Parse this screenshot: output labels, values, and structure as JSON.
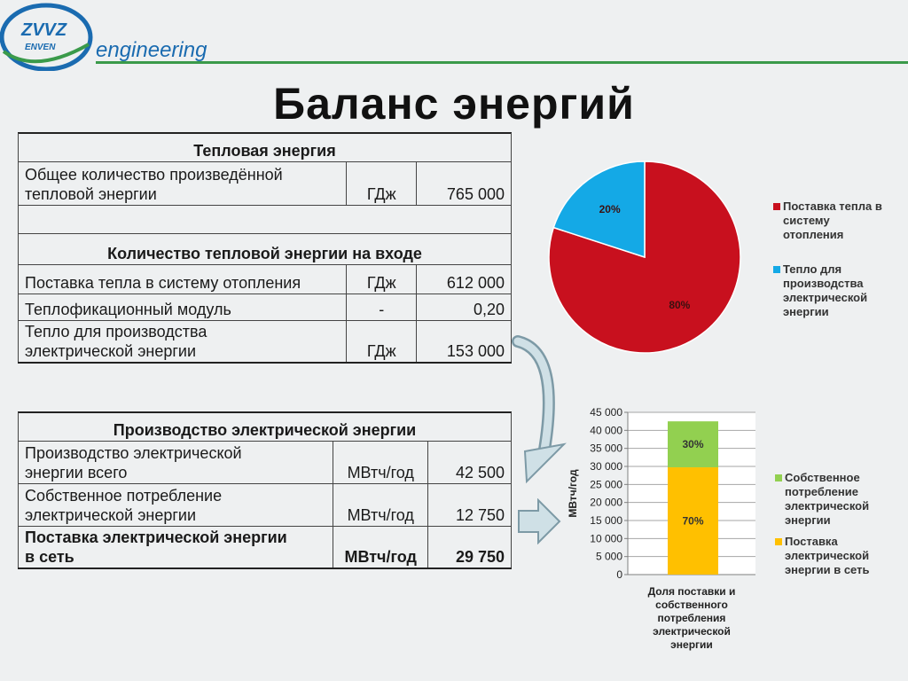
{
  "brand": {
    "logo_top": "ZVVZ",
    "logo_bottom": "ENVEN",
    "word": "engineering"
  },
  "title": "Баланс энергий",
  "table_heat": {
    "section1": "Тепловая энергия",
    "row1": {
      "label_1": "Общее количество произведённой",
      "label_2": "тепловой энергии",
      "unit": "ГДж",
      "value": "765 000"
    },
    "section2": "Количество тепловой энергии на входе",
    "row2": {
      "label": "Поставка тепла в систему отопления",
      "unit": "ГДж",
      "value": "612 000"
    },
    "row3": {
      "label": "Теплофикационный модуль",
      "unit": "-",
      "value": "0,20"
    },
    "row4": {
      "label_1": "Тепло для производства",
      "label_2": "электрической энергии",
      "unit": "ГДж",
      "value": "153 000"
    }
  },
  "table_elec": {
    "section": "Производство электрической энергии",
    "row1": {
      "label_1": "Производство электрической",
      "label_2": "энергии всего",
      "unit": "МВтч/год",
      "value": "42 500"
    },
    "row2": {
      "label_1": "Собственное потребление",
      "label_2": "электрической энергии",
      "unit": "МВтч/год",
      "value": "12 750"
    },
    "row3": {
      "label_1": "Поставка электрической энергии",
      "label_2": "в сеть",
      "unit": "МВтч/год",
      "value": "29 750"
    }
  },
  "chart_data": [
    {
      "type": "pie",
      "slices": [
        {
          "name": "Поставка тепла в системy отопления",
          "label": "80%",
          "value": 80,
          "color": "#c8101e"
        },
        {
          "name": "Тепло для производства электрической энергии",
          "label": "20%",
          "value": 20,
          "color": "#14a9e6"
        }
      ],
      "legend_placement": "right"
    },
    {
      "type": "bar",
      "stacked": true,
      "categories": [
        "Доля поставки и собственного потребления электрической энергии"
      ],
      "series": [
        {
          "name": "Поставка электрической энергии в сеть",
          "values": [
            29750
          ],
          "label": "70%",
          "color": "#ffc000"
        },
        {
          "name": "Собственное потребление электрической энергии",
          "values": [
            12750
          ],
          "label": "30%",
          "color": "#92d050"
        }
      ],
      "ylabel": "МВтч/год",
      "ylim": [
        0,
        45000
      ],
      "yticks": [
        "0",
        "5 000",
        "10 000",
        "15 000",
        "20 000",
        "25 000",
        "30 000",
        "35 000",
        "40 000",
        "45 000"
      ],
      "xlabel_lines": [
        "Доля поставки и",
        "собственного",
        "потребления",
        "электрической",
        "энергии"
      ],
      "grid": true,
      "legend_placement": "right"
    }
  ],
  "legend_pie": {
    "a": [
      "Поставка тепла в",
      "системy",
      "отопления"
    ],
    "b": [
      "Тепло для",
      "производства",
      "электрической",
      "энергии"
    ]
  },
  "legend_bar": {
    "a": [
      "Собственное",
      "потребление",
      "электрической",
      "энергии"
    ],
    "b": [
      "Поставка",
      "электрической",
      "энергии в сеть"
    ]
  }
}
